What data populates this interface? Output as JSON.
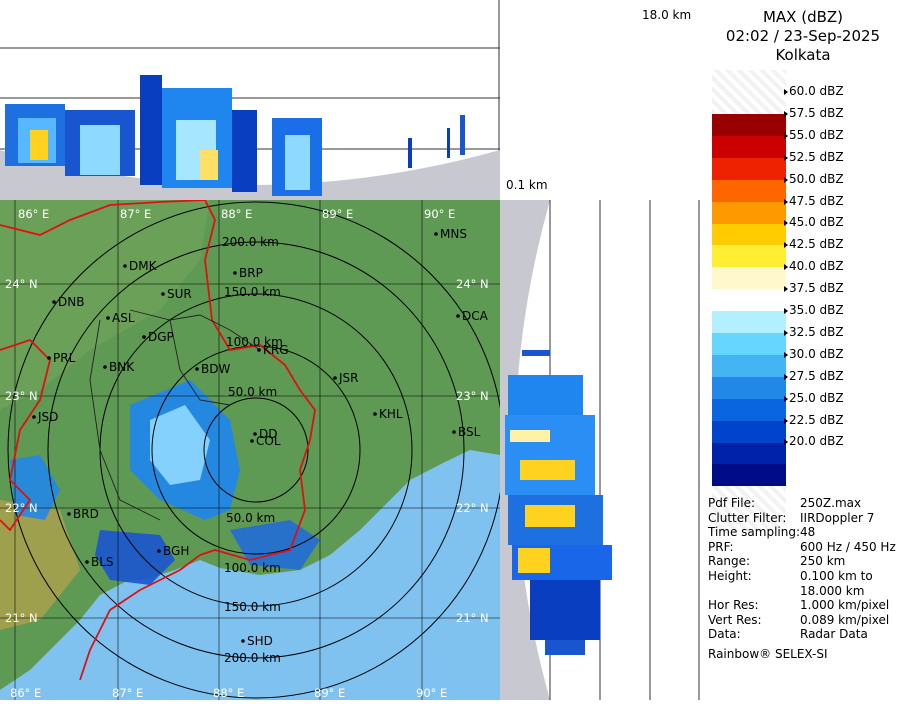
{
  "header": {
    "product": "MAX (dBZ)",
    "datetime": "02:02 / 23-Sep-2025",
    "station": "Kolkata"
  },
  "top_section": {
    "max_height_label": "18.0 km"
  },
  "side_section": {
    "min_height_label": "0.1 km"
  },
  "legend": {
    "colors": [
      "#990000",
      "#cc0000",
      "#ee2200",
      "#ff6600",
      "#ff9900",
      "#ffcc00",
      "#ffee33",
      "#fff8cc",
      "#ffffff",
      "#b3f0ff",
      "#66d6ff",
      "#44b4f2",
      "#2288e8",
      "#0a66e0",
      "#0044cc",
      "#0022aa",
      "#000b88"
    ],
    "labels": [
      "60.0 dBZ",
      "57.5 dBZ",
      "55.0 dBZ",
      "52.5 dBZ",
      "50.0 dBZ",
      "47.5 dBZ",
      "45.0 dBZ",
      "42.5 dBZ",
      "40.0 dBZ",
      "37.5 dBZ",
      "35.0 dBZ",
      "32.5 dBZ",
      "30.0 dBZ",
      "27.5 dBZ",
      "25.0 dBZ",
      "22.5 dBZ",
      "20.0 dBZ"
    ]
  },
  "info": [
    {
      "key": "Pdf File:",
      "value": "250Z.max"
    },
    {
      "key": "Clutter Filter:",
      "value": "IIRDoppler 7"
    },
    {
      "key": "Time sampling:",
      "value": "48"
    },
    {
      "key": "PRF:",
      "value": "600 Hz / 450 Hz"
    },
    {
      "key": "Range:",
      "value": "250 km"
    },
    {
      "key": "Height:",
      "value": "0.100 km to"
    },
    {
      "key": "",
      "value": "18.000 km"
    },
    {
      "key": "Hor Res:",
      "value": "1.000 km/pixel"
    },
    {
      "key": "Vert Res:",
      "value": "0.089 km/pixel"
    },
    {
      "key": "Data:",
      "value": "Radar Data"
    }
  ],
  "footer": "Rainbow® SELEX-SI",
  "map": {
    "longitudes": [
      "86° E",
      "87° E",
      "88° E",
      "89° E",
      "90° E"
    ],
    "latitudes": [
      "24° N",
      "23° N",
      "22° N",
      "21° N"
    ],
    "range_rings": [
      "50.0 km",
      "100.0 km",
      "150.0 km",
      "200.0 km"
    ],
    "places": [
      "DMK",
      "BRP",
      "MNS",
      "DNB",
      "SUR",
      "ASL",
      "DGP",
      "DCA",
      "PRL",
      "KRG",
      "BNK",
      "BDW",
      "JSR",
      "JSD",
      "KHL",
      "BSL",
      "DD",
      "COL",
      "BRD",
      "BGH",
      "BLS",
      "SHD"
    ]
  },
  "colors": {
    "land": "#5f9a55",
    "sea": "#7fc2f0",
    "border": "#e01010",
    "rings": "#000000"
  }
}
